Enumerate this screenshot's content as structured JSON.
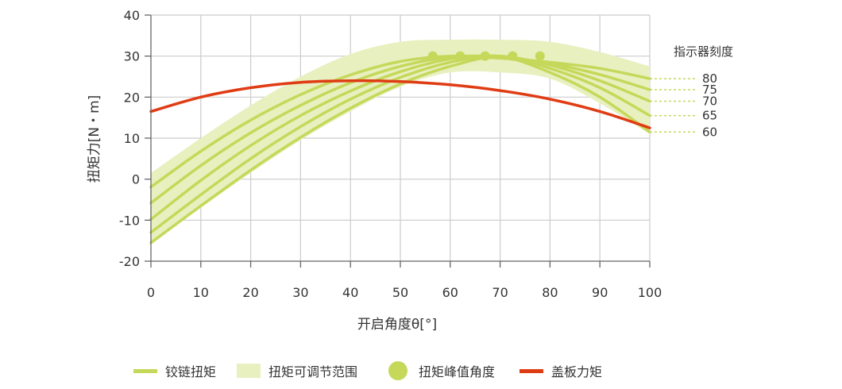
{
  "chart_data": {
    "type": "line",
    "xlabel": "开启角度θ[°]",
    "ylabel": "扭矩力[N・m]",
    "xlim": [
      0,
      100
    ],
    "ylim": [
      -20,
      40
    ],
    "x_ticks": [
      0,
      10,
      20,
      30,
      40,
      50,
      60,
      70,
      80,
      90,
      100
    ],
    "y_ticks": [
      -20,
      -10,
      0,
      10,
      20,
      30,
      40
    ],
    "grid": true,
    "colors": {
      "hinge": "#c5d85a",
      "band": "#e8f0c0",
      "peak": "#c5d85a",
      "lid": "#e03c14",
      "axis": "#666666",
      "grid": "#cccccc"
    },
    "indicator": {
      "title": "指示器刻度",
      "labels": [
        "80",
        "75",
        "70",
        "65",
        "60"
      ]
    },
    "hinge_series": [
      {
        "name": "80",
        "x": [
          0,
          10,
          20,
          30,
          40,
          50,
          60,
          70,
          80,
          90,
          100
        ],
        "y": [
          -1.9,
          6.8,
          14.4,
          20.6,
          25.4,
          28.7,
          30.0,
          29.5,
          28.5,
          27.0,
          24.5
        ]
      },
      {
        "name": "75",
        "x": [
          0,
          10,
          20,
          30,
          40,
          50,
          60,
          70,
          80,
          90,
          100
        ],
        "y": [
          -5.8,
          3.3,
          11.3,
          18.0,
          23.5,
          27.5,
          29.8,
          29.8,
          28.2,
          25.5,
          21.8
        ]
      },
      {
        "name": "70",
        "x": [
          0,
          10,
          20,
          30,
          40,
          50,
          60,
          70,
          80,
          90,
          100
        ],
        "y": [
          -9.8,
          -0.3,
          8.2,
          15.5,
          21.5,
          26.2,
          29.3,
          30.0,
          27.8,
          24.0,
          19.0
        ]
      },
      {
        "name": "65",
        "x": [
          0,
          10,
          20,
          30,
          40,
          50,
          60,
          70,
          80,
          90,
          100
        ],
        "y": [
          -13.0,
          -3.8,
          5.0,
          12.8,
          19.5,
          24.8,
          28.5,
          30.0,
          27.0,
          22.3,
          15.5
        ]
      },
      {
        "name": "60",
        "x": [
          0,
          10,
          20,
          30,
          40,
          50,
          60,
          70,
          80,
          90,
          100
        ],
        "y": [
          -15.5,
          -6.5,
          2.2,
          10.2,
          17.3,
          23.2,
          27.5,
          29.8,
          26.0,
          20.0,
          11.5
        ]
      }
    ],
    "band": {
      "x": [
        0,
        10,
        20,
        30,
        40,
        50,
        60,
        70,
        80,
        90,
        100
      ],
      "upper": [
        1.5,
        10.0,
        18.0,
        25.0,
        30.5,
        33.5,
        34.0,
        34.0,
        33.5,
        31.0,
        27.5
      ],
      "lower": [
        -15.5,
        -7.0,
        1.5,
        9.5,
        16.5,
        22.5,
        26.0,
        26.0,
        24.5,
        18.5,
        11.0
      ]
    },
    "peaks": {
      "x": [
        56.5,
        62,
        67,
        72.5,
        78
      ],
      "y": [
        30,
        30,
        30,
        30,
        30
      ]
    },
    "lid_series": {
      "name": "盖板力矩",
      "x": [
        0,
        10,
        20,
        30,
        40,
        50,
        60,
        70,
        80,
        90,
        100
      ],
      "y": [
        16.5,
        20.0,
        22.3,
        23.6,
        24.0,
        23.8,
        23.0,
        21.6,
        19.5,
        16.5,
        12.5
      ]
    },
    "legend": {
      "placement": "bottom",
      "items": [
        "铰链扭矩",
        "扭矩可调节范围",
        "扭矩峰值角度",
        "盖板力矩"
      ]
    }
  }
}
